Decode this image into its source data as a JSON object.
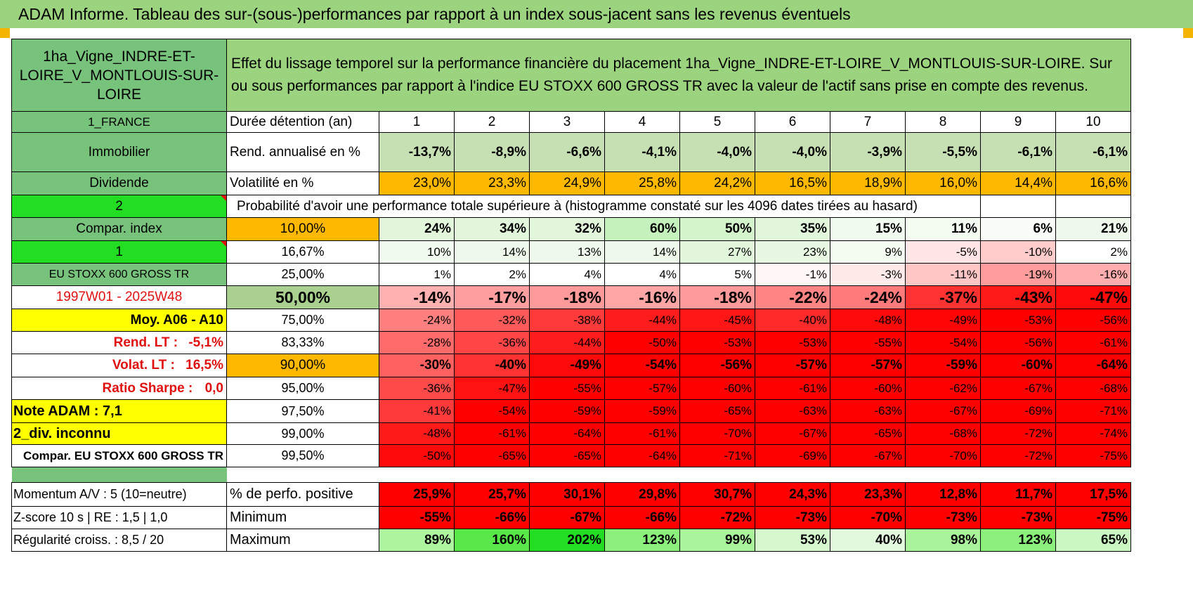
{
  "title": "ADAM Informe. Tableau des sur-(sous-)performances par rapport à un index sous-jacent sans les revenus éventuels",
  "asset": {
    "name": "1ha_Vigne_INDRE-ET-LOIRE_V_MONTLOUIS-SUR-LOIRE",
    "country": "1_FRANCE",
    "category": "Immobilier",
    "dividend_label": "Dividende",
    "dividend_value": "2",
    "compar_label": "Compar. index",
    "compar_value": "1",
    "index_name": "EU STOXX 600 GROSS TR",
    "period": "1997W01 - 2025W48",
    "moy": "Moy. A06 - A10",
    "rend_lt_label": "Rend. LT :",
    "rend_lt_value": "-5,1%",
    "volat_lt_label": "Volat. LT :",
    "volat_lt_value": "16,5%",
    "sharpe_label": "Ratio Sharpe :",
    "sharpe_value": "0,0",
    "note": "Note ADAM : 7,1",
    "div_status": "2_div. inconnu",
    "compar_full": "Compar. EU STOXX 600 GROSS TR"
  },
  "description": "Effet du lissage temporel sur la performance financière du placement 1ha_Vigne_INDRE-ET-LOIRE_V_MONTLOUIS-SUR-LOIRE. Sur ou sous performances par rapport à l'indice EU STOXX 600 GROSS TR avec la valeur de l'actif sans prise en compte des revenus.",
  "headers": {
    "duration": "Durée détention (an)",
    "years": [
      "1",
      "2",
      "3",
      "4",
      "5",
      "6",
      "7",
      "8",
      "9",
      "10"
    ],
    "rend": "Rend. annualisé en %",
    "vol": "Volatilité en %",
    "prob": "Probabilité d'avoir une performance totale supérieure à (histogramme constaté sur les 4096 dates tirées au hasard)"
  },
  "rend_values": [
    "-13,7%",
    "-8,9%",
    "-6,6%",
    "-4,1%",
    "-4,0%",
    "-4,0%",
    "-3,9%",
    "-5,5%",
    "-6,1%",
    "-6,1%"
  ],
  "vol_values": [
    "23,0%",
    "23,3%",
    "24,9%",
    "25,8%",
    "24,2%",
    "16,5%",
    "18,9%",
    "16,0%",
    "14,4%",
    "16,6%"
  ],
  "quantiles": [
    {
      "label": "10,00%",
      "values": [
        "24%",
        "34%",
        "32%",
        "60%",
        "50%",
        "35%",
        "15%",
        "11%",
        "6%",
        "21%"
      ]
    },
    {
      "label": "16,67%",
      "values": [
        "10%",
        "14%",
        "13%",
        "14%",
        "27%",
        "23%",
        "9%",
        "-5%",
        "-10%",
        "2%"
      ]
    },
    {
      "label": "25,00%",
      "values": [
        "1%",
        "2%",
        "4%",
        "4%",
        "5%",
        "-1%",
        "-3%",
        "-11%",
        "-19%",
        "-16%"
      ]
    },
    {
      "label": "50,00%",
      "values": [
        "-14%",
        "-17%",
        "-18%",
        "-16%",
        "-18%",
        "-22%",
        "-24%",
        "-37%",
        "-43%",
        "-47%"
      ]
    },
    {
      "label": "75,00%",
      "values": [
        "-24%",
        "-32%",
        "-38%",
        "-44%",
        "-45%",
        "-40%",
        "-48%",
        "-49%",
        "-53%",
        "-56%"
      ]
    },
    {
      "label": "83,33%",
      "values": [
        "-28%",
        "-36%",
        "-44%",
        "-50%",
        "-53%",
        "-53%",
        "-55%",
        "-54%",
        "-56%",
        "-61%"
      ]
    },
    {
      "label": "90,00%",
      "values": [
        "-30%",
        "-40%",
        "-49%",
        "-54%",
        "-56%",
        "-57%",
        "-57%",
        "-59%",
        "-60%",
        "-64%"
      ]
    },
    {
      "label": "95,00%",
      "values": [
        "-36%",
        "-47%",
        "-55%",
        "-57%",
        "-60%",
        "-61%",
        "-60%",
        "-62%",
        "-67%",
        "-68%"
      ]
    },
    {
      "label": "97,50%",
      "values": [
        "-41%",
        "-54%",
        "-59%",
        "-59%",
        "-65%",
        "-63%",
        "-63%",
        "-67%",
        "-69%",
        "-71%"
      ]
    },
    {
      "label": "99,00%",
      "values": [
        "-48%",
        "-61%",
        "-64%",
        "-61%",
        "-70%",
        "-67%",
        "-65%",
        "-68%",
        "-72%",
        "-74%"
      ]
    },
    {
      "label": "99,50%",
      "values": [
        "-50%",
        "-65%",
        "-65%",
        "-64%",
        "-71%",
        "-69%",
        "-67%",
        "-70%",
        "-72%",
        "-75%"
      ]
    }
  ],
  "stats": [
    {
      "left": "Momentum A/V : 5 (10=neutre)",
      "label": "% de perfo. positive",
      "values": [
        "25,9%",
        "25,7%",
        "30,1%",
        "29,8%",
        "30,7%",
        "24,3%",
        "23,3%",
        "12,8%",
        "11,7%",
        "17,5%"
      ]
    },
    {
      "left": "Z-score 10 s | RE : 1,5 | 1,0",
      "label": "Minimum",
      "values": [
        "-55%",
        "-66%",
        "-67%",
        "-66%",
        "-72%",
        "-73%",
        "-70%",
        "-73%",
        "-73%",
        "-75%"
      ]
    },
    {
      "left": "Régularité croiss. : 8,5 / 20",
      "label": "Maximum",
      "values": [
        "89%",
        "160%",
        "202%",
        "123%",
        "99%",
        "53%",
        "40%",
        "98%",
        "123%",
        "65%"
      ]
    }
  ],
  "colors": {
    "header_green": "#9bd37f",
    "label_green": "#77c37b",
    "bright_green": "#22dd22",
    "yellow": "#ffff00",
    "orange": "#ffb800",
    "red": "#ff0000"
  }
}
